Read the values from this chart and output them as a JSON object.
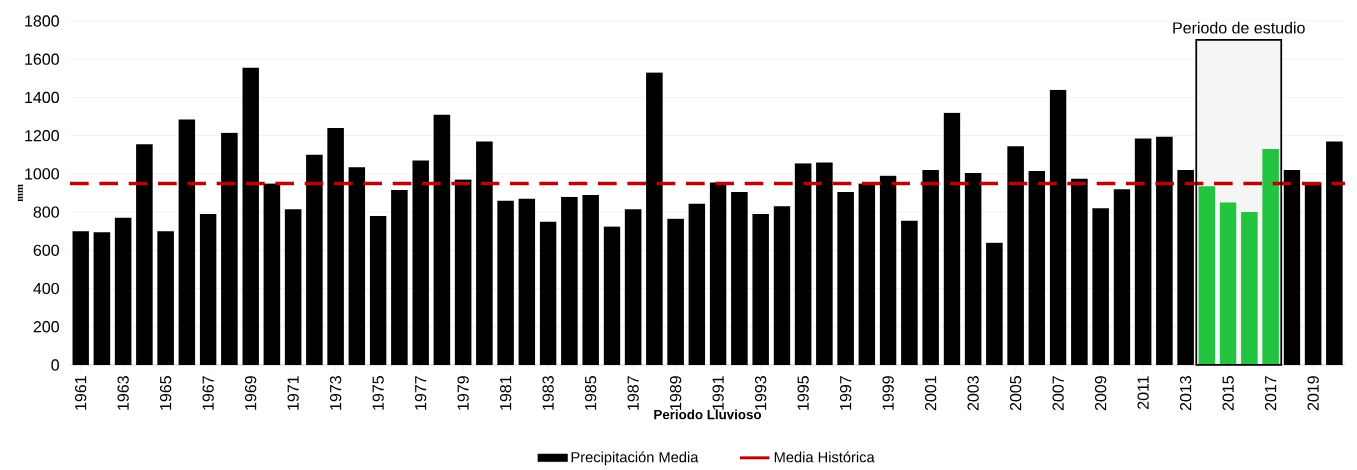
{
  "chart_data": {
    "type": "bar",
    "xlabel": "Periodo Lluvioso",
    "ylabel": "mm",
    "x": [
      1961,
      1962,
      1963,
      1964,
      1965,
      1966,
      1967,
      1968,
      1969,
      1970,
      1971,
      1972,
      1973,
      1974,
      1975,
      1976,
      1977,
      1978,
      1979,
      1980,
      1981,
      1982,
      1983,
      1984,
      1985,
      1986,
      1987,
      1988,
      1989,
      1990,
      1991,
      1992,
      1993,
      1994,
      1995,
      1996,
      1997,
      1998,
      1999,
      2000,
      2001,
      2002,
      2003,
      2004,
      2005,
      2006,
      2007,
      2008,
      2009,
      2010,
      2011,
      2012,
      2013,
      2014,
      2015,
      2016,
      2017,
      2018,
      2019,
      2020
    ],
    "series": [
      {
        "name": "Precipitación Media",
        "color": "#000000",
        "values": [
          700,
          695,
          770,
          1155,
          700,
          1285,
          790,
          1215,
          1555,
          950,
          815,
          1100,
          1240,
          1035,
          780,
          915,
          1070,
          1310,
          970,
          1170,
          860,
          870,
          750,
          880,
          890,
          725,
          815,
          1530,
          765,
          845,
          955,
          905,
          790,
          830,
          1055,
          1060,
          905,
          950,
          990,
          755,
          1020,
          1320,
          1005,
          640,
          1145,
          1015,
          1440,
          975,
          820,
          920,
          1185,
          1195,
          1020,
          935,
          850,
          800,
          1130,
          1020,
          955,
          1170
        ],
        "colors": [
          "#000000",
          "#000000",
          "#000000",
          "#000000",
          "#000000",
          "#000000",
          "#000000",
          "#000000",
          "#000000",
          "#000000",
          "#000000",
          "#000000",
          "#000000",
          "#000000",
          "#000000",
          "#000000",
          "#000000",
          "#000000",
          "#000000",
          "#000000",
          "#000000",
          "#000000",
          "#000000",
          "#000000",
          "#000000",
          "#000000",
          "#000000",
          "#000000",
          "#000000",
          "#000000",
          "#000000",
          "#000000",
          "#000000",
          "#000000",
          "#000000",
          "#000000",
          "#000000",
          "#000000",
          "#000000",
          "#000000",
          "#000000",
          "#000000",
          "#000000",
          "#000000",
          "#000000",
          "#000000",
          "#000000",
          "#000000",
          "#000000",
          "#000000",
          "#000000",
          "#000000",
          "#000000",
          "#22c440",
          "#22c440",
          "#22c440",
          "#22c440",
          "#000000",
          "#000000",
          "#000000"
        ]
      }
    ],
    "ref_lines": [
      {
        "axis": "y",
        "value": 950,
        "label": "Media Histórica",
        "color": "#c00000",
        "line_style": "dashed"
      }
    ],
    "bands": [
      {
        "axis": "x",
        "from": 2013.5,
        "to": 2017.5,
        "label": "Periodo de estudio"
      }
    ],
    "xlim": [
      1960.5,
      2020.5
    ],
    "xticks": [
      1961,
      1963,
      1965,
      1967,
      1969,
      1971,
      1973,
      1975,
      1977,
      1979,
      1981,
      1983,
      1985,
      1987,
      1989,
      1991,
      1993,
      1995,
      1997,
      1999,
      2001,
      2003,
      2005,
      2007,
      2009,
      2011,
      2013,
      2015,
      2017,
      2019
    ],
    "ylim": [
      0,
      1800
    ],
    "yticks": [
      0,
      200,
      400,
      600,
      800,
      1000,
      1200,
      1400,
      1600,
      1800
    ],
    "grid": "y",
    "legend": "bottom"
  }
}
